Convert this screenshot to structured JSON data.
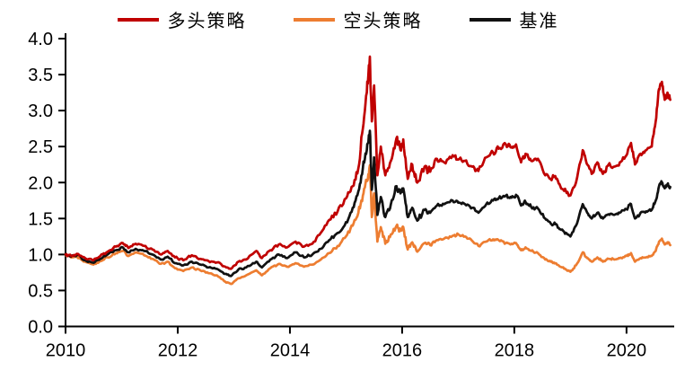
{
  "chart_data": {
    "type": "line",
    "title": "",
    "background": "#ffffff",
    "grid": false,
    "legend_position": "top-center",
    "axis_color": "#000000",
    "xlim": [
      2010,
      2020.85
    ],
    "ylim": [
      0,
      4.0
    ],
    "x_ticks": [
      2010,
      2012,
      2014,
      2016,
      2018,
      2020
    ],
    "x_tick_labels": [
      "2010",
      "2012",
      "2014",
      "2016",
      "2018",
      "2020"
    ],
    "y_ticks": [
      0,
      0.5,
      1.0,
      1.5,
      2.0,
      2.5,
      3.0,
      3.5,
      4.0
    ],
    "y_tick_labels": [
      "0.0",
      "0.5",
      "1.0",
      "1.5",
      "2.0",
      "2.5",
      "3.0",
      "3.5",
      "4.0"
    ],
    "x": [
      2010.0,
      2010.1,
      2010.2,
      2010.35,
      2010.5,
      2010.62,
      2010.75,
      2010.9,
      2011.02,
      2011.12,
      2011.25,
      2011.4,
      2011.55,
      2011.7,
      2011.82,
      2011.95,
      2012.1,
      2012.25,
      2012.4,
      2012.55,
      2012.7,
      2012.85,
      2012.95,
      2013.08,
      2013.22,
      2013.4,
      2013.5,
      2013.65,
      2013.8,
      2013.95,
      2014.1,
      2014.25,
      2014.4,
      2014.55,
      2014.7,
      2014.85,
      2015.0,
      2015.12,
      2015.22,
      2015.3,
      2015.37,
      2015.425,
      2015.46,
      2015.5,
      2015.56,
      2015.62,
      2015.7,
      2015.8,
      2015.9,
      2015.97,
      2016.02,
      2016.1,
      2016.18,
      2016.27,
      2016.4,
      2016.5,
      2016.62,
      2016.75,
      2016.9,
      2017.0,
      2017.12,
      2017.25,
      2017.36,
      2017.5,
      2017.62,
      2017.72,
      2017.85,
      2017.95,
      2018.03,
      2018.12,
      2018.2,
      2018.3,
      2018.42,
      2018.55,
      2018.65,
      2018.73,
      2018.82,
      2018.92,
      2019.0,
      2019.1,
      2019.22,
      2019.3,
      2019.38,
      2019.48,
      2019.58,
      2019.68,
      2019.78,
      2019.88,
      2020.0,
      2020.08,
      2020.15,
      2020.25,
      2020.35,
      2020.45,
      2020.52,
      2020.58,
      2020.63,
      2020.68,
      2020.73,
      2020.78
    ],
    "series": [
      {
        "name": "多头策略",
        "color": "#c00000",
        "values": [
          1.0,
          0.98,
          1.01,
          0.95,
          0.92,
          0.98,
          1.04,
          1.11,
          1.16,
          1.09,
          1.15,
          1.12,
          1.07,
          1.0,
          1.05,
          0.96,
          0.92,
          0.99,
          0.94,
          0.91,
          0.89,
          0.83,
          0.8,
          0.9,
          0.93,
          1.05,
          0.95,
          1.06,
          1.14,
          1.1,
          1.18,
          1.11,
          1.15,
          1.3,
          1.48,
          1.6,
          1.78,
          1.95,
          2.2,
          2.75,
          3.25,
          3.75,
          2.85,
          3.35,
          2.1,
          2.5,
          2.1,
          2.3,
          2.62,
          2.45,
          2.6,
          2.05,
          2.25,
          2.0,
          2.22,
          2.15,
          2.33,
          2.28,
          2.38,
          2.32,
          2.3,
          2.22,
          2.16,
          2.35,
          2.42,
          2.47,
          2.53,
          2.49,
          2.53,
          2.28,
          2.4,
          2.3,
          2.33,
          2.1,
          2.05,
          2.09,
          1.95,
          1.88,
          1.82,
          2.0,
          2.45,
          2.25,
          2.12,
          2.28,
          2.12,
          2.25,
          2.22,
          2.28,
          2.38,
          2.55,
          2.25,
          2.4,
          2.45,
          2.5,
          2.85,
          3.3,
          3.4,
          3.15,
          3.25,
          3.15
        ]
      },
      {
        "name": "空头策略",
        "color": "#ed7d31",
        "values": [
          1.0,
          0.96,
          0.975,
          0.9,
          0.86,
          0.91,
          0.96,
          1.02,
          1.05,
          0.98,
          1.03,
          0.99,
          0.94,
          0.87,
          0.9,
          0.81,
          0.77,
          0.82,
          0.78,
          0.74,
          0.71,
          0.62,
          0.59,
          0.67,
          0.71,
          0.78,
          0.71,
          0.81,
          0.87,
          0.83,
          0.88,
          0.83,
          0.86,
          0.93,
          1.02,
          1.12,
          1.25,
          1.4,
          1.58,
          1.82,
          2.02,
          2.24,
          1.52,
          1.85,
          1.18,
          1.38,
          1.15,
          1.28,
          1.4,
          1.33,
          1.38,
          1.07,
          1.17,
          1.04,
          1.16,
          1.13,
          1.2,
          1.22,
          1.26,
          1.28,
          1.25,
          1.19,
          1.12,
          1.18,
          1.21,
          1.2,
          1.16,
          1.15,
          1.16,
          1.06,
          1.1,
          1.05,
          1.02,
          0.93,
          0.9,
          0.88,
          0.83,
          0.79,
          0.76,
          0.85,
          1.03,
          0.95,
          0.9,
          0.96,
          0.9,
          0.94,
          0.93,
          0.95,
          0.98,
          1.02,
          0.9,
          0.95,
          0.96,
          0.98,
          1.05,
          1.18,
          1.22,
          1.14,
          1.17,
          1.13
        ]
      },
      {
        "name": "基准",
        "color": "#111111",
        "values": [
          1.0,
          0.97,
          0.995,
          0.92,
          0.885,
          0.94,
          1.0,
          1.06,
          1.1,
          1.03,
          1.08,
          1.05,
          1.0,
          0.93,
          0.97,
          0.88,
          0.85,
          0.9,
          0.86,
          0.82,
          0.8,
          0.73,
          0.7,
          0.79,
          0.82,
          0.9,
          0.82,
          0.93,
          1.0,
          0.95,
          1.03,
          0.96,
          1.0,
          1.08,
          1.2,
          1.3,
          1.45,
          1.65,
          1.88,
          2.2,
          2.45,
          2.72,
          1.9,
          2.35,
          1.55,
          1.8,
          1.52,
          1.7,
          1.95,
          1.85,
          1.92,
          1.52,
          1.65,
          1.47,
          1.62,
          1.58,
          1.68,
          1.7,
          1.75,
          1.72,
          1.7,
          1.65,
          1.58,
          1.7,
          1.75,
          1.78,
          1.82,
          1.79,
          1.83,
          1.68,
          1.73,
          1.66,
          1.64,
          1.5,
          1.43,
          1.42,
          1.35,
          1.3,
          1.25,
          1.4,
          1.7,
          1.58,
          1.5,
          1.58,
          1.5,
          1.56,
          1.55,
          1.58,
          1.63,
          1.7,
          1.5,
          1.58,
          1.6,
          1.62,
          1.75,
          1.95,
          2.0,
          1.92,
          1.97,
          1.94
        ]
      }
    ],
    "draw_order": [
      1,
      2,
      0
    ],
    "line_width": 2.7
  }
}
